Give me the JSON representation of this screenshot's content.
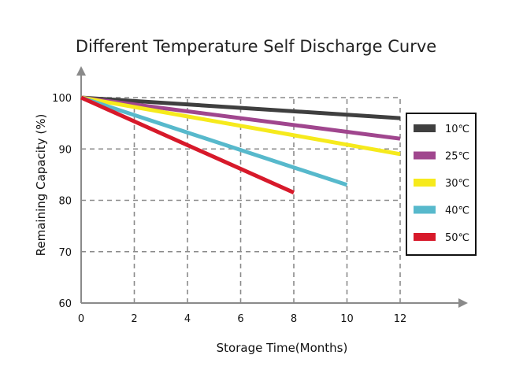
{
  "chart_data": {
    "type": "line",
    "title": "Different Temperature Self Discharge Curve",
    "xlabel": "Storage Time(Months)",
    "ylabel": "Remaining Capacity (%)",
    "xlim": [
      0,
      12
    ],
    "ylim": [
      60,
      100
    ],
    "xticks": [
      "0",
      "2",
      "4",
      "6",
      "8",
      "10",
      "12"
    ],
    "yticks": [
      "60",
      "70",
      "80",
      "90",
      "100"
    ],
    "grid": true,
    "legend_position": "right",
    "series": [
      {
        "name": "10℃",
        "color": "#3f3f3f",
        "x": [
          0,
          12
        ],
        "y": [
          100,
          96
        ]
      },
      {
        "name": "25℃",
        "color": "#a0468e",
        "x": [
          0,
          12
        ],
        "y": [
          100,
          92
        ]
      },
      {
        "name": "30℃",
        "color": "#f6ea1c",
        "x": [
          0,
          12
        ],
        "y": [
          100,
          89
        ]
      },
      {
        "name": "40℃",
        "color": "#57b9cc",
        "x": [
          0,
          10
        ],
        "y": [
          100,
          83
        ]
      },
      {
        "name": "50℃",
        "color": "#d7192a",
        "x": [
          0,
          8
        ],
        "y": [
          100,
          81.5
        ]
      }
    ]
  }
}
